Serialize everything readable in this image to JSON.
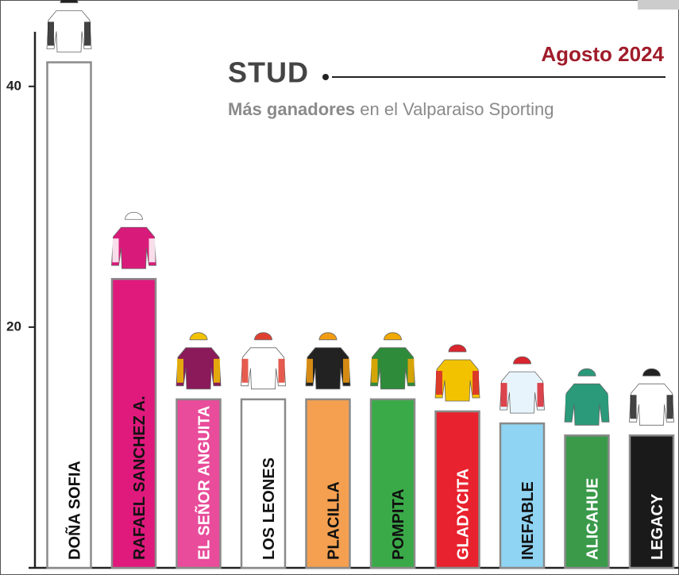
{
  "chart_data": {
    "type": "bar",
    "title": "STUD",
    "date": "Agosto 2024",
    "subtitle": [
      "Más ganadores",
      "en el Valparaiso Sporting"
    ],
    "categories": [
      "DOÑA SOFIA",
      "RAFAEL SANCHEZ A.",
      "EL SEÑOR ANGUITA",
      "LOS LEONES",
      "PLACILLA",
      "POMPITA",
      "GLADYCITA",
      "INEFABLE",
      "ALICAHUE",
      "LEGACY"
    ],
    "values": [
      42,
      24,
      14,
      14,
      14,
      14,
      13,
      12,
      11,
      11
    ],
    "colors": [
      "#ffffff",
      "#e0197d",
      "#e84c9a",
      "#ffffff",
      "#f4a050",
      "#3aaa48",
      "#e8222e",
      "#8fd4f2",
      "#3a9a4a",
      "#1a1a1a"
    ],
    "label_colors": [
      "#111111",
      "#111111",
      "#ffffff",
      "#111111",
      "#111111",
      "#111111",
      "#ffffff",
      "#111111",
      "#ffffff",
      "#ffffff"
    ],
    "ylim": [
      0,
      45
    ],
    "yticks": [
      20,
      40
    ],
    "grid": false
  }
}
